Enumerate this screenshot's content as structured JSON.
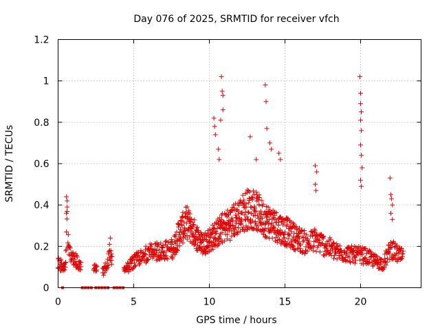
{
  "chart_data": {
    "type": "scatter",
    "title": "Day 076 of 2025, SRMTID for receiver vfch",
    "xlabel": "GPS time / hours",
    "ylabel": "SRMTID / TECUs",
    "xlim": [
      0,
      24
    ],
    "ylim": [
      0,
      1.2
    ],
    "x_ticks": [
      0,
      5,
      10,
      15,
      20
    ],
    "x_tick_labels": [
      "0",
      "5",
      "10",
      "15",
      "20"
    ],
    "y_ticks": [
      0,
      0.2,
      0.4,
      0.6,
      0.8,
      1.0,
      1.2
    ],
    "y_tick_labels": [
      "0",
      "0.2",
      "0.4",
      "0.6",
      "0.8",
      "1",
      "1.2"
    ],
    "grid": true,
    "marker": "plus",
    "series_color": "#e00000",
    "series": [
      {
        "name": "SRMTID",
        "trend": [
          [
            0.0,
            0.12
          ],
          [
            0.3,
            0.09
          ],
          [
            0.5,
            0.1
          ],
          [
            0.6,
            0.3
          ],
          [
            0.7,
            0.18
          ],
          [
            0.9,
            0.15
          ],
          [
            1.2,
            0.12
          ],
          [
            1.5,
            0.1
          ],
          [
            2.5,
            0.09
          ],
          [
            3.0,
            0.07
          ],
          [
            3.4,
            0.14
          ],
          [
            4.4,
            0.08
          ],
          [
            5.0,
            0.12
          ],
          [
            6.0,
            0.16
          ],
          [
            7.0,
            0.17
          ],
          [
            7.6,
            0.18
          ],
          [
            8.0,
            0.25
          ],
          [
            8.5,
            0.3
          ],
          [
            9.0,
            0.25
          ],
          [
            9.5,
            0.2
          ],
          [
            10.0,
            0.22
          ],
          [
            10.5,
            0.25
          ],
          [
            11.0,
            0.28
          ],
          [
            11.5,
            0.3
          ],
          [
            12.0,
            0.33
          ],
          [
            12.5,
            0.36
          ],
          [
            13.0,
            0.36
          ],
          [
            13.5,
            0.32
          ],
          [
            14.0,
            0.3
          ],
          [
            14.5,
            0.28
          ],
          [
            15.0,
            0.26
          ],
          [
            15.5,
            0.24
          ],
          [
            16.0,
            0.22
          ],
          [
            16.5,
            0.2
          ],
          [
            17.0,
            0.22
          ],
          [
            17.5,
            0.2
          ],
          [
            18.0,
            0.18
          ],
          [
            18.5,
            0.16
          ],
          [
            19.0,
            0.16
          ],
          [
            19.5,
            0.15
          ],
          [
            20.0,
            0.15
          ],
          [
            20.5,
            0.14
          ],
          [
            21.0,
            0.12
          ],
          [
            21.5,
            0.11
          ],
          [
            22.0,
            0.18
          ],
          [
            22.5,
            0.15
          ],
          [
            22.8,
            0.14
          ]
        ],
        "spikes": [
          [
            0.55,
            0.44
          ],
          [
            0.6,
            0.42
          ],
          [
            0.6,
            0.39
          ],
          [
            0.55,
            0.36
          ],
          [
            3.45,
            0.24
          ],
          [
            3.4,
            0.21
          ],
          [
            10.3,
            0.82
          ],
          [
            10.35,
            0.78
          ],
          [
            10.4,
            0.74
          ],
          [
            10.6,
            0.67
          ],
          [
            10.65,
            0.62
          ],
          [
            10.8,
            1.02
          ],
          [
            10.85,
            0.95
          ],
          [
            10.9,
            0.93
          ],
          [
            10.9,
            0.86
          ],
          [
            10.75,
            0.81
          ],
          [
            12.7,
            0.73
          ],
          [
            13.1,
            0.62
          ],
          [
            13.7,
            0.98
          ],
          [
            13.75,
            0.9
          ],
          [
            13.8,
            0.77
          ],
          [
            14.0,
            0.7
          ],
          [
            14.1,
            0.67
          ],
          [
            14.6,
            0.65
          ],
          [
            14.7,
            0.62
          ],
          [
            17.0,
            0.59
          ],
          [
            17.1,
            0.56
          ],
          [
            17.0,
            0.5
          ],
          [
            17.05,
            0.47
          ],
          [
            19.95,
            1.02
          ],
          [
            20.0,
            0.94
          ],
          [
            20.0,
            0.89
          ],
          [
            20.05,
            0.85
          ],
          [
            20.0,
            0.81
          ],
          [
            20.05,
            0.76
          ],
          [
            20.0,
            0.69
          ],
          [
            20.05,
            0.64
          ],
          [
            20.1,
            0.58
          ],
          [
            20.0,
            0.52
          ],
          [
            20.05,
            0.49
          ],
          [
            21.95,
            0.53
          ],
          [
            22.0,
            0.45
          ],
          [
            22.05,
            0.43
          ],
          [
            22.1,
            0.4
          ],
          [
            22.0,
            0.36
          ],
          [
            22.1,
            0.33
          ]
        ],
        "zero_markers": [
          0.3,
          1.6,
          1.8,
          2.0,
          2.2,
          2.5,
          2.7,
          2.9,
          3.1,
          3.3,
          3.7,
          3.9,
          4.1,
          4.3
        ]
      }
    ]
  }
}
